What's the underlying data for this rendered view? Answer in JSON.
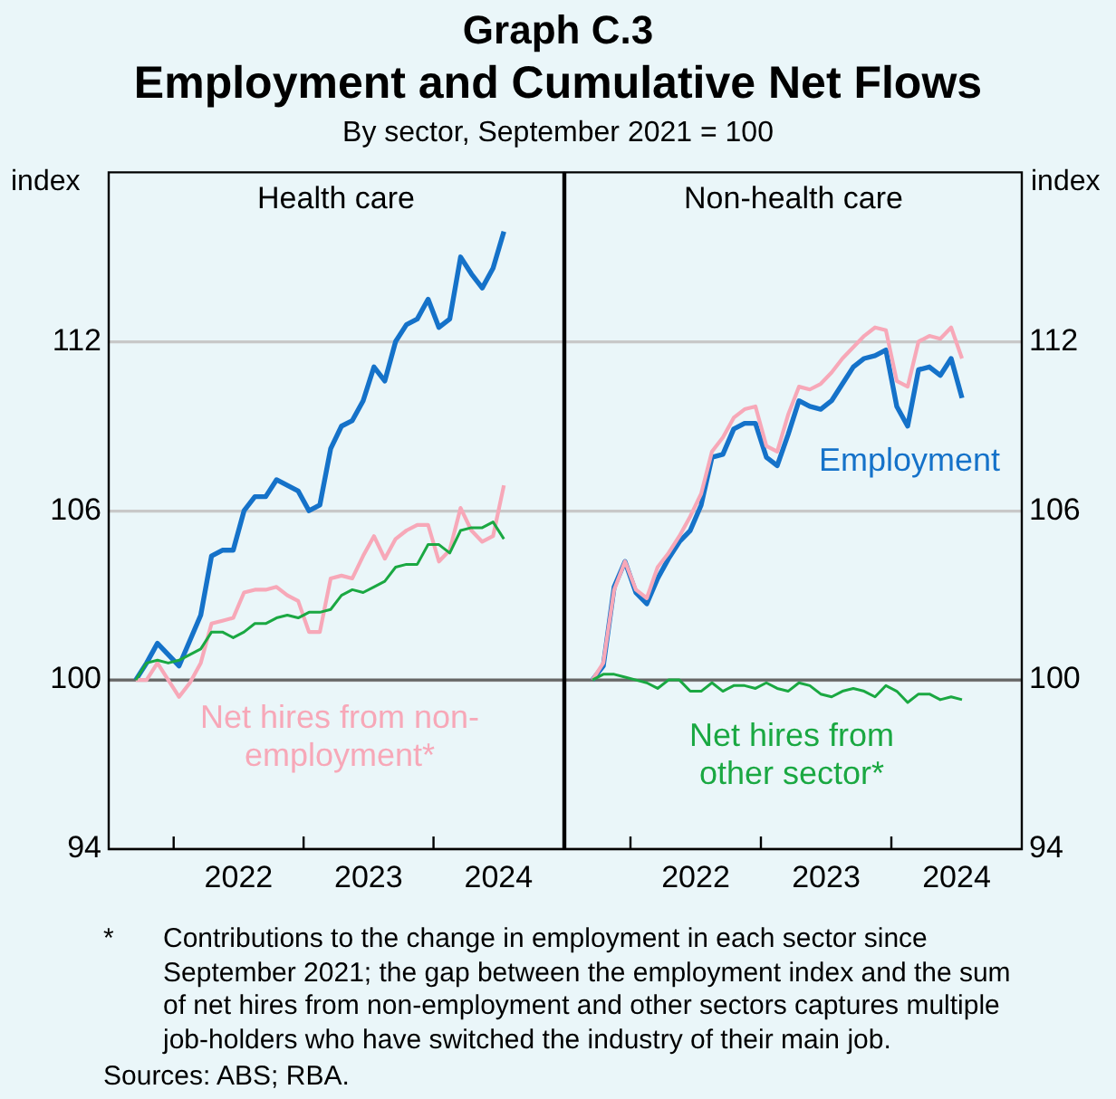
{
  "chart_data": [
    {
      "type": "line",
      "title": "Health care",
      "ylabel": "index",
      "legend": false,
      "grid": "y",
      "annotations": [
        "Graph C.3",
        "Employment and Cumulative Net Flows",
        "By sector, September 2021 = 100"
      ],
      "x": [
        "2021-09",
        "2021-10",
        "2021-11",
        "2021-12",
        "2022-01",
        "2022-02",
        "2022-03",
        "2022-04",
        "2022-05",
        "2022-06",
        "2022-07",
        "2022-08",
        "2022-09",
        "2022-10",
        "2022-11",
        "2022-12",
        "2023-01",
        "2023-02",
        "2023-03",
        "2023-04",
        "2023-05",
        "2023-06",
        "2023-07",
        "2023-08",
        "2023-09",
        "2023-10",
        "2023-11",
        "2023-12",
        "2024-01",
        "2024-02",
        "2024-03",
        "2024-04",
        "2024-05",
        "2024-06",
        "2024-07"
      ],
      "xlim": [
        "2021-07-01",
        "2025-01-01"
      ],
      "xticks": [
        {
          "value": "2022-01-01",
          "label": null
        },
        {
          "value": "2022-07-01",
          "label": "2022"
        },
        {
          "value": "2023-01-01",
          "label": null
        },
        {
          "value": "2023-07-01",
          "label": "2023"
        },
        {
          "value": "2024-01-01",
          "label": null
        },
        {
          "value": "2024-07-01",
          "label": "2024"
        }
      ],
      "ylim": [
        94,
        118
      ],
      "yticks": [
        94,
        100,
        106,
        112
      ],
      "ref_lines": [
        {
          "axis": "y",
          "value": 100,
          "color": "#666666"
        }
      ],
      "series": [
        {
          "color": "#1572c9",
          "values": [
            100,
            100.6,
            101.3,
            100.9,
            100.5,
            101.4,
            102.3,
            104.4,
            104.6,
            104.6,
            106.0,
            106.5,
            106.5,
            107.1,
            106.9,
            106.7,
            106.0,
            106.2,
            108.2,
            109.0,
            109.2,
            109.9,
            111.1,
            110.6,
            112.0,
            112.6,
            112.8,
            113.5,
            112.5,
            112.8,
            115.0,
            114.4,
            113.9,
            114.6,
            115.9
          ]
        },
        {
          "name": "Net hires from non-employment*",
          "color": "#f7a8b8",
          "values": [
            100,
            100.0,
            100.6,
            100.0,
            99.4,
            99.9,
            100.6,
            102.0,
            102.1,
            102.2,
            103.1,
            103.2,
            103.2,
            103.3,
            103.0,
            102.8,
            101.7,
            101.7,
            103.6,
            103.7,
            103.6,
            104.4,
            105.1,
            104.3,
            105.0,
            105.3,
            105.5,
            105.5,
            104.2,
            104.6,
            106.1,
            105.3,
            104.9,
            105.1,
            106.9
          ]
        },
        {
          "color": "#1aa842",
          "values": [
            100,
            100.6,
            100.7,
            100.6,
            100.7,
            100.9,
            101.1,
            101.7,
            101.7,
            101.5,
            101.7,
            102.0,
            102.0,
            102.2,
            102.3,
            102.2,
            102.4,
            102.4,
            102.5,
            103.0,
            103.2,
            103.1,
            103.3,
            103.5,
            104.0,
            104.1,
            104.1,
            104.8,
            104.8,
            104.5,
            105.3,
            105.4,
            105.4,
            105.6,
            105.0
          ]
        }
      ]
    },
    {
      "type": "line",
      "title": "Non-health care",
      "ylabel": "index",
      "legend": false,
      "grid": "y",
      "annotations": [
        "*",
        "Contributions to the change in employment in each sector since September 2021; the gap between the employment index and the sum of net hires from non-employment and other sectors captures multiple job-holders who have switched the industry of their main job.",
        "Sources: ABS; RBA."
      ],
      "x": [
        "2021-09",
        "2021-10",
        "2021-11",
        "2021-12",
        "2022-01",
        "2022-02",
        "2022-03",
        "2022-04",
        "2022-05",
        "2022-06",
        "2022-07",
        "2022-08",
        "2022-09",
        "2022-10",
        "2022-11",
        "2022-12",
        "2023-01",
        "2023-02",
        "2023-03",
        "2023-04",
        "2023-05",
        "2023-06",
        "2023-07",
        "2023-08",
        "2023-09",
        "2023-10",
        "2023-11",
        "2023-12",
        "2024-01",
        "2024-02",
        "2024-03",
        "2024-04",
        "2024-05",
        "2024-06",
        "2024-07"
      ],
      "xlim": [
        "2021-07-01",
        "2025-01-01"
      ],
      "xticks": [
        {
          "value": "2022-01-01",
          "label": null
        },
        {
          "value": "2022-07-01",
          "label": "2022"
        },
        {
          "value": "2023-01-01",
          "label": null
        },
        {
          "value": "2023-07-01",
          "label": "2023"
        },
        {
          "value": "2024-01-01",
          "label": null
        },
        {
          "value": "2024-07-01",
          "label": "2024"
        }
      ],
      "ylim": [
        94,
        118
      ],
      "yticks": [
        94,
        100,
        106,
        112
      ],
      "ref_lines": [
        {
          "axis": "y",
          "value": 100,
          "color": "#666666"
        }
      ],
      "series": [
        {
          "name": "Employment",
          "color": "#1572c9",
          "values": [
            100,
            100.5,
            103.3,
            104.2,
            103.1,
            102.7,
            103.6,
            104.3,
            104.9,
            105.3,
            106.2,
            107.9,
            108.0,
            108.9,
            109.1,
            109.1,
            107.9,
            107.6,
            108.7,
            109.9,
            109.7,
            109.6,
            109.9,
            110.5,
            111.1,
            111.4,
            111.5,
            111.7,
            109.7,
            109.0,
            111.0,
            111.1,
            110.8,
            111.4,
            110.0
          ]
        },
        {
          "color": "#f7a8b8",
          "values": [
            100,
            100.6,
            103.2,
            104.2,
            103.2,
            102.9,
            104.0,
            104.5,
            105.1,
            105.8,
            106.6,
            108.1,
            108.6,
            109.3,
            109.6,
            109.7,
            108.3,
            108.1,
            109.4,
            110.4,
            110.3,
            110.5,
            110.9,
            111.4,
            111.8,
            112.2,
            112.5,
            112.4,
            110.6,
            110.4,
            112.0,
            112.2,
            112.1,
            112.5,
            111.4
          ]
        },
        {
          "name": "Net hires from other sector*",
          "color": "#1aa842",
          "values": [
            100,
            100.2,
            100.2,
            100.1,
            100.0,
            99.9,
            99.7,
            100.0,
            100.0,
            99.6,
            99.6,
            99.9,
            99.6,
            99.8,
            99.8,
            99.7,
            99.9,
            99.7,
            99.6,
            99.9,
            99.8,
            99.5,
            99.4,
            99.6,
            99.7,
            99.6,
            99.4,
            99.8,
            99.6,
            99.2,
            99.5,
            99.5,
            99.3,
            99.4,
            99.3
          ]
        }
      ]
    }
  ]
}
